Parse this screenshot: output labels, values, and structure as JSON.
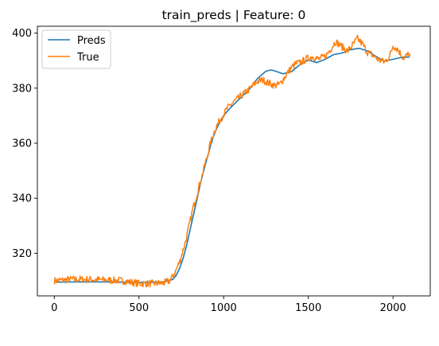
{
  "chart_data": {
    "type": "line",
    "title": "train_preds | Feature: 0",
    "xlabel": "",
    "ylabel": "",
    "xlim": [
      -100,
      2220
    ],
    "ylim": [
      304.5,
      402.5
    ],
    "xticks": [
      0,
      500,
      1000,
      1500,
      2000
    ],
    "yticks": [
      320,
      340,
      360,
      380,
      400
    ],
    "grid": false,
    "legend": "top-left",
    "series": [
      {
        "name": "Preds",
        "color": "#1f77b4",
        "x": [
          0,
          100,
          200,
          300,
          400,
          500,
          600,
          650,
          700,
          720,
          740,
          760,
          780,
          800,
          820,
          840,
          860,
          880,
          900,
          920,
          940,
          960,
          980,
          1000,
          1020,
          1050,
          1100,
          1150,
          1200,
          1250,
          1280,
          1300,
          1350,
          1400,
          1450,
          1500,
          1550,
          1600,
          1650,
          1700,
          1750,
          1800,
          1850,
          1900,
          1950,
          2000,
          2050,
          2100
        ],
        "values": [
          309.5,
          309.6,
          309.6,
          309.6,
          309.5,
          309.4,
          309.5,
          309.6,
          310.5,
          312,
          314.5,
          318,
          322.5,
          328,
          333.5,
          339,
          344.5,
          349.5,
          354,
          358.5,
          362.5,
          365.5,
          368,
          370,
          371.5,
          373.5,
          376.5,
          379.5,
          383.5,
          386.2,
          386.6,
          386.3,
          385.2,
          386,
          388.5,
          390.2,
          389.3,
          390.5,
          392.2,
          392.8,
          394,
          394.5,
          393.5,
          391.5,
          389.8,
          390.5,
          391.2,
          391.3
        ]
      },
      {
        "name": "True",
        "color": "#ff7f0e",
        "x": [
          0,
          100,
          200,
          300,
          400,
          450,
          500,
          550,
          600,
          650,
          680,
          700,
          720,
          740,
          760,
          780,
          800,
          820,
          840,
          860,
          880,
          900,
          920,
          940,
          960,
          980,
          1000,
          1020,
          1050,
          1100,
          1150,
          1200,
          1230,
          1260,
          1300,
          1330,
          1360,
          1400,
          1430,
          1460,
          1500,
          1530,
          1560,
          1600,
          1630,
          1660,
          1700,
          1730,
          1760,
          1790,
          1820,
          1850,
          1880,
          1910,
          1950,
          1980,
          2000,
          2030,
          2060,
          2100
        ],
        "values": [
          310,
          310.5,
          310.5,
          310.3,
          310,
          309.5,
          309,
          309,
          309,
          309.2,
          310,
          311.5,
          314,
          317,
          321,
          325.5,
          331,
          336.5,
          341,
          345.5,
          350,
          354.5,
          359.5,
          363.5,
          366.5,
          368.5,
          370.5,
          372.5,
          374.5,
          377,
          379.5,
          382.5,
          383,
          382,
          381,
          381.3,
          384,
          387.5,
          389,
          389.5,
          391,
          391.5,
          390.5,
          391.5,
          394,
          397,
          395,
          393.5,
          395.5,
          398,
          396,
          393,
          392,
          390.5,
          389.5,
          391.5,
          395.5,
          394,
          391,
          392.5
        ]
      }
    ]
  }
}
